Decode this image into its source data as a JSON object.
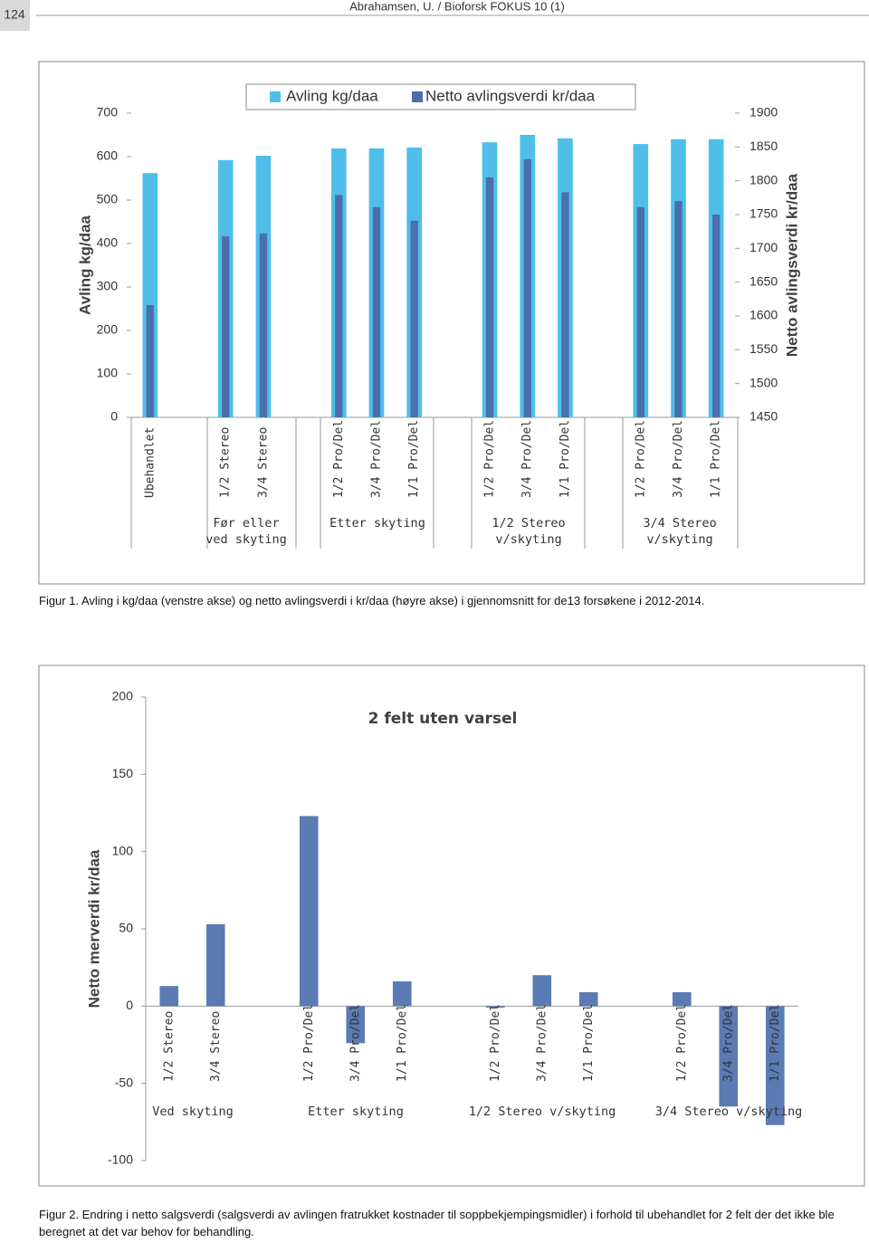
{
  "header": {
    "page_number": "124",
    "running_head": "Abrahamsen, U. / Bioforsk FOKUS 10 (1)"
  },
  "chart_data": [
    {
      "type": "bar",
      "categories": [
        "Ubehandlet",
        null,
        "1/2 Stereo",
        "3/4 Stereo",
        null,
        "1/2 Pro/Del",
        "3/4 Pro/Del",
        "1/1 Pro/Del",
        null,
        "1/2 Pro/Del",
        "3/4 Pro/Del",
        "1/1 Pro/Del",
        null,
        "1/2 Pro/Del",
        "3/4 Pro/Del",
        "1/1 Pro/Del"
      ],
      "group_labels": [
        "Før eller ved skyting",
        "Etter skyting",
        "1/2 Stereo v/skyting",
        "3/4 Stereo v/skyting"
      ],
      "series": [
        {
          "name": "Avling kg/daa",
          "color": "#4fbfea",
          "values": [
            562,
            null,
            592,
            602,
            null,
            619,
            619,
            621,
            null,
            633,
            650,
            642,
            null,
            629,
            640,
            640
          ]
        },
        {
          "name": "Netto avlingsverdi kr/daa",
          "color": "#4b6ead",
          "axis": "y2",
          "values": [
            1616,
            null,
            1718,
            1722,
            null,
            1779,
            1761,
            1741,
            null,
            1805,
            1832,
            1783,
            null,
            1761,
            1770,
            1750
          ]
        }
      ],
      "y_label": "Avling kg/daa",
      "y2_label": "Netto avlingsverdi kr/daa",
      "ylim": [
        0,
        700
      ],
      "yticks": [
        0,
        100,
        200,
        300,
        400,
        500,
        600,
        700
      ],
      "y2lim": [
        1450,
        1900
      ],
      "y2ticks": [
        1450,
        1500,
        1550,
        1600,
        1650,
        1700,
        1750,
        1800,
        1850,
        1900
      ],
      "legend": "top"
    },
    {
      "type": "bar",
      "title": "2 felt uten varsel",
      "categories": [
        "1/2 Stereo",
        "3/4 Stereo",
        null,
        "1/2 Pro/Del",
        "3/4 Pro/Del",
        "1/1 Pro/Del",
        null,
        "1/2 Pro/Del",
        "3/4 Pro/Del",
        "1/1 Pro/Del",
        null,
        "1/2 Pro/Del",
        "3/4 Pro/Del",
        "1/1 Pro/Del"
      ],
      "group_labels": [
        "Ved skyting",
        "Etter skyting",
        "1/2 Stereo v/skyting",
        "3/4 Stereo v/skyting"
      ],
      "series": [
        {
          "color": "#5b7bb4",
          "values": [
            13,
            53,
            null,
            123,
            -24,
            16,
            null,
            -1,
            20,
            9,
            null,
            9,
            -65,
            -77
          ]
        }
      ],
      "y_label": "Netto merverdi kr/daa",
      "ylim": [
        -100,
        200
      ],
      "yticks": [
        -100,
        -50,
        0,
        50,
        100,
        150,
        200
      ]
    }
  ],
  "captions": [
    "Figur 1. Avling i kg/daa (venstre akse) og netto avlingsverdi i kr/daa (høyre akse) i gjennomsnitt for de13 forsøkene i 2012-2014.",
    "Figur 2. Endring i netto salgsverdi (salgsverdi av avlingen fratrukket kostnader til soppbekjempingsmidler) i forhold til ubehandlet for 2 felt der det ikke ble beregnet at det var behov for behandling."
  ]
}
